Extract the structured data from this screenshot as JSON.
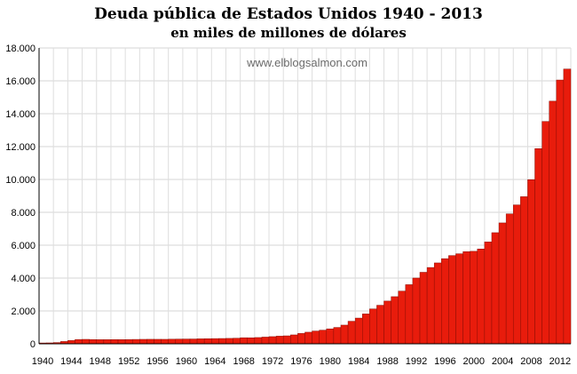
{
  "chart_data": {
    "type": "bar",
    "title": "Deuda pública de Estados Unidos 1940 - 2013",
    "subtitle": "en miles de millones de dólares",
    "watermark": "www.elblogsalmon.com",
    "ylim": [
      0,
      18000
    ],
    "yticks": [
      "0",
      "2.000",
      "4.000",
      "6.000",
      "8.000",
      "10.000",
      "12.000",
      "14.000",
      "16.000",
      "18.000"
    ],
    "xticks": [
      "1940",
      "1944",
      "1948",
      "1952",
      "1956",
      "1960",
      "1964",
      "1968",
      "1972",
      "1976",
      "1980",
      "1984",
      "1988",
      "1992",
      "1996",
      "2000",
      "2004",
      "2008",
      "2012"
    ],
    "grid": true,
    "bar_color": "#e81c0c",
    "categories": [
      1940,
      1941,
      1942,
      1943,
      1944,
      1945,
      1946,
      1947,
      1948,
      1949,
      1950,
      1951,
      1952,
      1953,
      1954,
      1955,
      1956,
      1957,
      1958,
      1959,
      1960,
      1961,
      1962,
      1963,
      1964,
      1965,
      1966,
      1967,
      1968,
      1969,
      1970,
      1971,
      1972,
      1973,
      1974,
      1975,
      1976,
      1977,
      1978,
      1979,
      1980,
      1981,
      1982,
      1983,
      1984,
      1985,
      1986,
      1987,
      1988,
      1989,
      1990,
      1991,
      1992,
      1993,
      1994,
      1995,
      1996,
      1997,
      1998,
      1999,
      2000,
      2001,
      2002,
      2003,
      2004,
      2005,
      2006,
      2007,
      2008,
      2009,
      2010,
      2011,
      2012,
      2013
    ],
    "values": [
      50,
      55,
      75,
      140,
      200,
      260,
      270,
      258,
      252,
      253,
      257,
      255,
      259,
      266,
      271,
      274,
      273,
      272,
      280,
      287,
      291,
      293,
      303,
      310,
      317,
      322,
      329,
      341,
      369,
      366,
      381,
      408,
      436,
      466,
      484,
      542,
      629,
      706,
      777,
      830,
      909,
      995,
      1137,
      1372,
      1565,
      1817,
      2121,
      2346,
      2601,
      2868,
      3206,
      3598,
      4002,
      4351,
      4643,
      4921,
      5181,
      5369,
      5478,
      5606,
      5629,
      5770,
      6198,
      6760,
      7355,
      7905,
      8451,
      8951,
      9986,
      11876,
      13529,
      14764,
      16051,
      16719
    ]
  }
}
